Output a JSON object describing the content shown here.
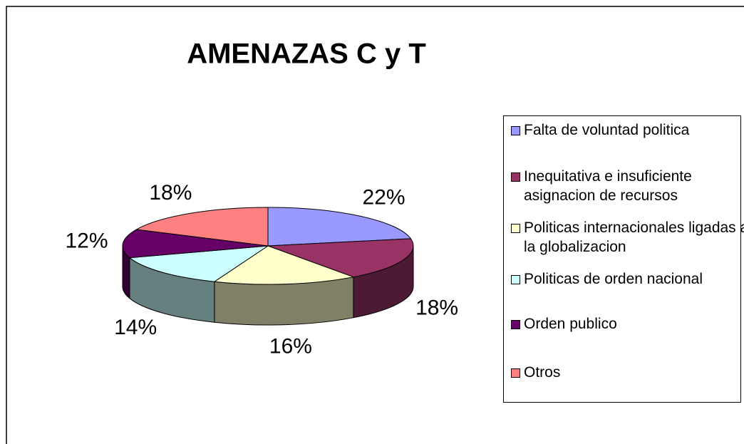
{
  "chart_data": {
    "type": "pie",
    "title": "AMENAZAS C y T",
    "categories": [
      "Falta de voluntad politica",
      "Inequitativa e insuficiente asignacion de recursos",
      "Politicas internacionales ligadas a la globalizacion",
      "Politicas de orden nacional",
      "Orden publico",
      "Otros"
    ],
    "values": [
      22,
      18,
      16,
      14,
      12,
      18
    ],
    "value_labels": [
      "22%",
      "18%",
      "16%",
      "14%",
      "12%",
      "18%"
    ],
    "colors": [
      "#9999ff",
      "#993366",
      "#ffffcc",
      "#ccffff",
      "#660066",
      "#ff8080"
    ],
    "legend": "right"
  }
}
